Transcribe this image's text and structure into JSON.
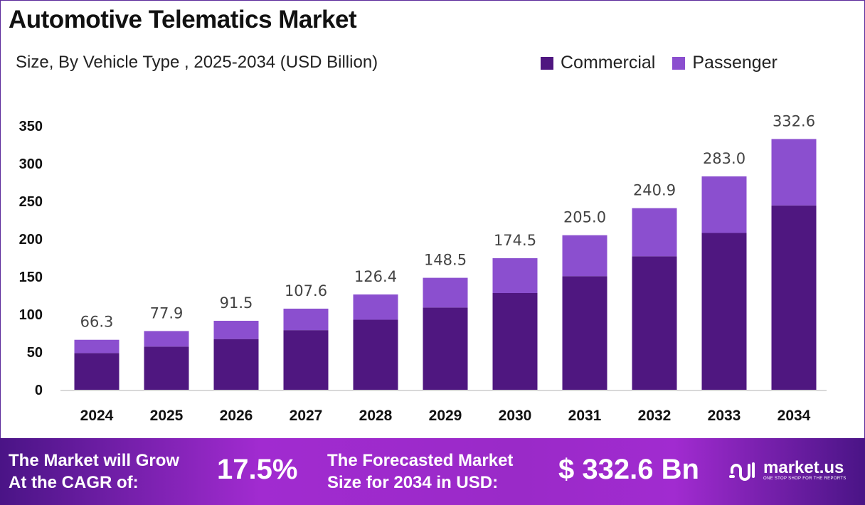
{
  "title": "Automotive Telematics Market",
  "subtitle": "Size, By Vehicle Type , 2025-2034 (USD Billion)",
  "colors": {
    "commercial": "#4f1780",
    "passenger": "#8b4fcf",
    "footer": "#a12bd0"
  },
  "chart_data": {
    "type": "bar",
    "stacked": true,
    "categories": [
      "2024",
      "2025",
      "2026",
      "2027",
      "2028",
      "2029",
      "2030",
      "2031",
      "2032",
      "2033",
      "2034"
    ],
    "series": [
      {
        "name": "Commercial",
        "values": [
          48.7,
          57.3,
          67.3,
          79.1,
          92.9,
          109.1,
          128.3,
          150.7,
          177.1,
          208.0,
          244.5
        ]
      },
      {
        "name": "Passenger",
        "values": [
          17.6,
          20.6,
          24.2,
          28.5,
          33.5,
          39.4,
          46.2,
          54.3,
          63.8,
          75.0,
          88.1
        ]
      }
    ],
    "totals": [
      "66.3",
      "77.9",
      "91.5",
      "107.6",
      "126.4",
      "148.5",
      "174.5",
      "205.0",
      "240.9",
      "283.0",
      "332.6"
    ],
    "yticks": [
      "0",
      "50",
      "100",
      "150",
      "200",
      "250",
      "300",
      "350"
    ],
    "ylim": [
      0,
      350
    ],
    "grid": false,
    "legend_position": "top-right"
  },
  "footer": {
    "cagr_label_1": "The Market will Grow",
    "cagr_label_2": "At the CAGR of:",
    "cagr_value": "17.5%",
    "forecast_label_1": "The Forecasted Market",
    "forecast_label_2": "Size for 2034 in USD:",
    "forecast_value": "$ 332.6 Bn",
    "logo_name": "market.us",
    "logo_tagline": "ONE STOP SHOP FOR THE REPORTS"
  }
}
